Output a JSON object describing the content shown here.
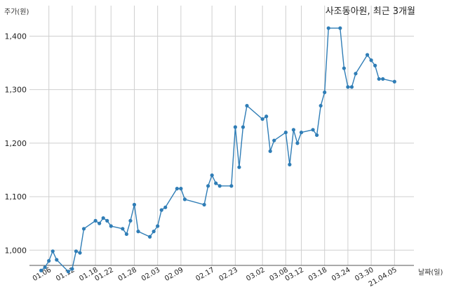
{
  "chart_data": {
    "type": "line",
    "title": "사조동아원, 최근 3개월",
    "ylabel": "주가(원)",
    "xlabel": "날짜(일)",
    "ylim": [
      940,
      1440
    ],
    "yticks": [
      1000,
      1100,
      1200,
      1300,
      1400
    ],
    "ytick_labels": [
      "1,000",
      "1,100",
      "1,200",
      "1,300",
      "1,400"
    ],
    "grid": true,
    "legend": "none",
    "line_color": "#2f7db6",
    "x": [
      "2021.01.04",
      "2021.01.05",
      "2021.01.06",
      "2021.01.07",
      "2021.01.08",
      "2021.01.11",
      "2021.01.12",
      "2021.01.13",
      "2021.01.14",
      "2021.01.15",
      "2021.01.18",
      "2021.01.19",
      "2021.01.20",
      "2021.01.21",
      "2021.01.22",
      "2021.01.25",
      "2021.01.26",
      "2021.01.27",
      "2021.01.28",
      "2021.01.29",
      "2021.02.01",
      "2021.02.02",
      "2021.02.03",
      "2021.02.04",
      "2021.02.05",
      "2021.02.08",
      "2021.02.09",
      "2021.02.10",
      "2021.02.15",
      "2021.02.16",
      "2021.02.17",
      "2021.02.18",
      "2021.02.19",
      "2021.02.22",
      "2021.02.23",
      "2021.02.24",
      "2021.02.25",
      "2021.02.26",
      "2021.03.02",
      "2021.03.03",
      "2021.03.04",
      "2021.03.05",
      "2021.03.08",
      "2021.03.09",
      "2021.03.10",
      "2021.03.11",
      "2021.03.12",
      "2021.03.15",
      "2021.03.16",
      "2021.03.17",
      "2021.03.18",
      "2021.03.19",
      "2021.03.22",
      "2021.03.23",
      "2021.03.24",
      "2021.03.25",
      "2021.03.26",
      "2021.03.29",
      "2021.03.30",
      "2021.03.31",
      "2021.04.01",
      "2021.04.02",
      "2021.04.05"
    ],
    "values": [
      962,
      968,
      980,
      998,
      982,
      960,
      965,
      998,
      995,
      1040,
      1055,
      1050,
      1060,
      1055,
      1045,
      1040,
      1030,
      1055,
      1085,
      1035,
      1025,
      1035,
      1045,
      1075,
      1080,
      1115,
      1115,
      1095,
      1085,
      1120,
      1140,
      1125,
      1120,
      1120,
      1230,
      1155,
      1230,
      1270,
      1245,
      1250,
      1185,
      1205,
      1220,
      1160,
      1225,
      1200,
      1220,
      1225,
      1215,
      1270,
      1295,
      1415,
      1415,
      1340,
      1305,
      1305,
      1330,
      1365,
      1355,
      1345,
      1320,
      1320,
      1315
    ],
    "xtick_dates": [
      "2021.01.06",
      "2021.01.12",
      "2021.01.18",
      "2021.01.22",
      "2021.01.28",
      "2021.02.03",
      "2021.02.09",
      "2021.02.17",
      "2021.02.23",
      "2021.03.02",
      "2021.03.08",
      "2021.03.12",
      "2021.03.18",
      "2021.03.24",
      "2021.03.30",
      "2021.04.05"
    ],
    "xtick_labels": [
      "01.06",
      "01.12",
      "01.18",
      "01.22",
      "01.28",
      "02.03",
      "02.09",
      "02.17",
      "02.23",
      "03.02",
      "03.08",
      "03.12",
      "03.18",
      "03.24",
      "03.30",
      "21.04.05"
    ]
  }
}
